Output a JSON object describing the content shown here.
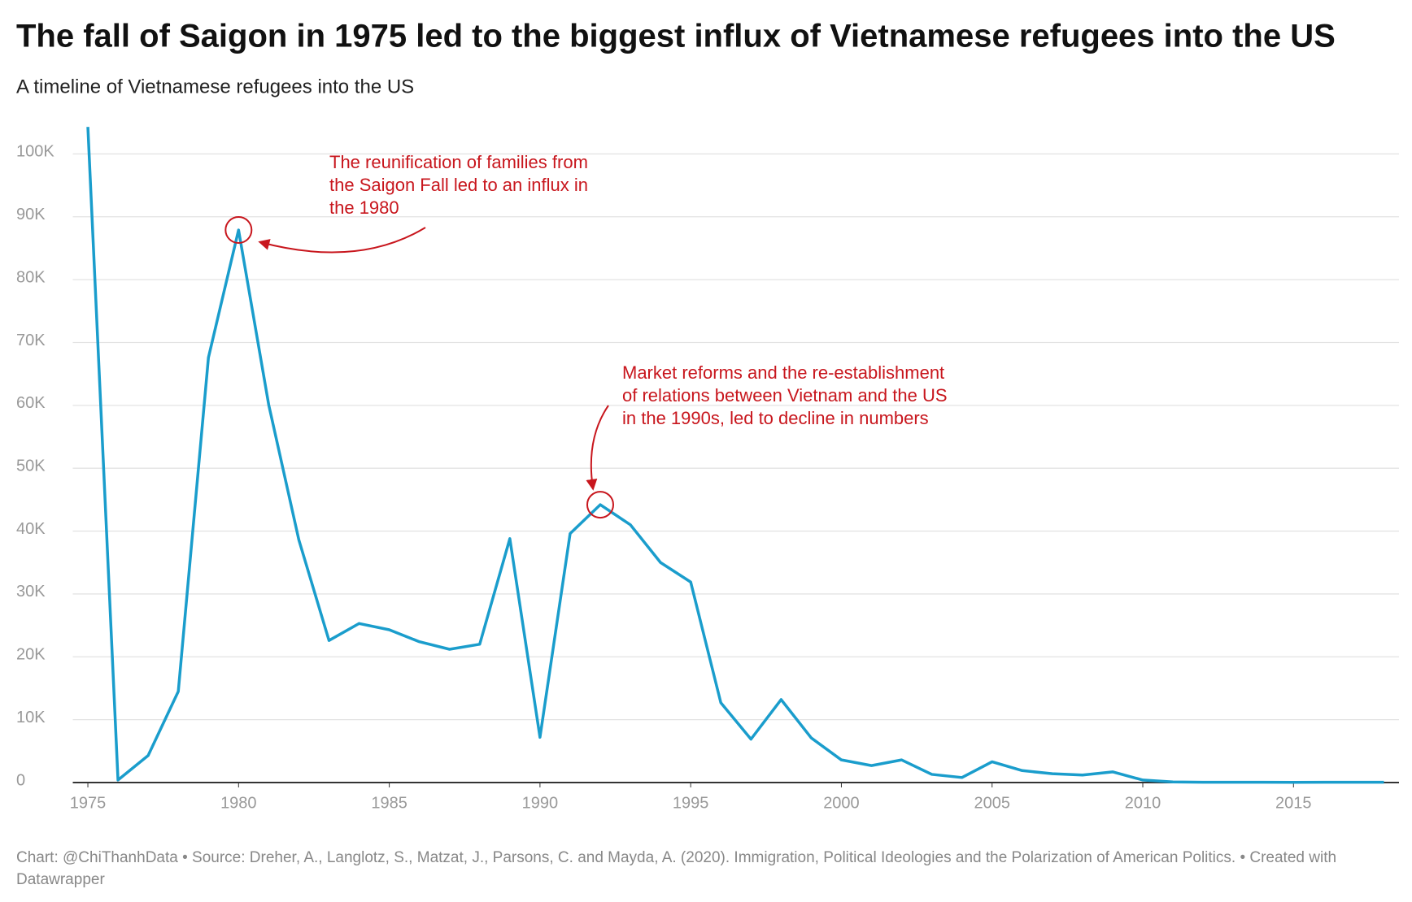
{
  "chart_data": {
    "type": "line",
    "title": "The fall of Saigon in 1975 led to the biggest influx of Vietnamese refugees into the US",
    "subtitle": "A timeline of Vietnamese refugees into the US",
    "x": [
      1975,
      1976,
      1977,
      1978,
      1979,
      1980,
      1981,
      1982,
      1983,
      1984,
      1985,
      1986,
      1987,
      1988,
      1989,
      1990,
      1991,
      1992,
      1993,
      1994,
      1995,
      1996,
      1997,
      1998,
      1999,
      2000,
      2001,
      2002,
      2003,
      2004,
      2005,
      2006,
      2007,
      2008,
      2009,
      2010,
      2011,
      2012,
      2013,
      2014,
      2015,
      2016,
      2017,
      2018
    ],
    "series": [
      {
        "name": "Vietnamese refugees",
        "color": "#1a9dcc",
        "values": [
          104300,
          400,
          4300,
          14500,
          67600,
          87900,
          60100,
          38600,
          22600,
          25300,
          24300,
          22400,
          21200,
          22000,
          38800,
          7200,
          39600,
          44200,
          41000,
          35000,
          31900,
          12700,
          6900,
          13200,
          7100,
          3600,
          2700,
          3600,
          1300,
          800,
          3300,
          1900,
          1400,
          1200,
          1700,
          400,
          100,
          50,
          50,
          50,
          30,
          50,
          50,
          50
        ]
      }
    ],
    "xlim": [
      1974.5,
      2018.5
    ],
    "xticks": [
      1975,
      1980,
      1985,
      1990,
      1995,
      2000,
      2005,
      2010,
      2015
    ],
    "ylim": [
      0,
      106000
    ],
    "yticks": [
      0,
      {
        "value": 10000,
        "label": "10K"
      },
      {
        "value": 20000,
        "label": "20K"
      },
      {
        "value": 30000,
        "label": "30K"
      },
      {
        "value": 40000,
        "label": "40K"
      },
      {
        "value": 50000,
        "label": "50K"
      },
      {
        "value": 60000,
        "label": "60K"
      },
      {
        "value": 70000,
        "label": "70K"
      },
      {
        "value": 80000,
        "label": "80K"
      },
      {
        "value": 90000,
        "label": "90K"
      },
      {
        "value": 100000,
        "label": "100K"
      }
    ],
    "grid": true,
    "annotations": [
      {
        "lines": [
          "The reunification of families from",
          "the Saigon Fall led to an influx in",
          "the 1980"
        ]
      },
      {
        "lines": [
          "Market reforms and the re-establishment",
          "of relations between Vietnam and the US",
          "in the 1990s, led to decline in numbers"
        ]
      }
    ],
    "footer": "Chart: @ChiThanhData • Source: Dreher, A., Langlotz, S., Matzat, J., Parsons, C. and Mayda, A. (2020). Immigration, Political Ideologies and the Polarization of American Politics. • Created with Datawrapper"
  }
}
